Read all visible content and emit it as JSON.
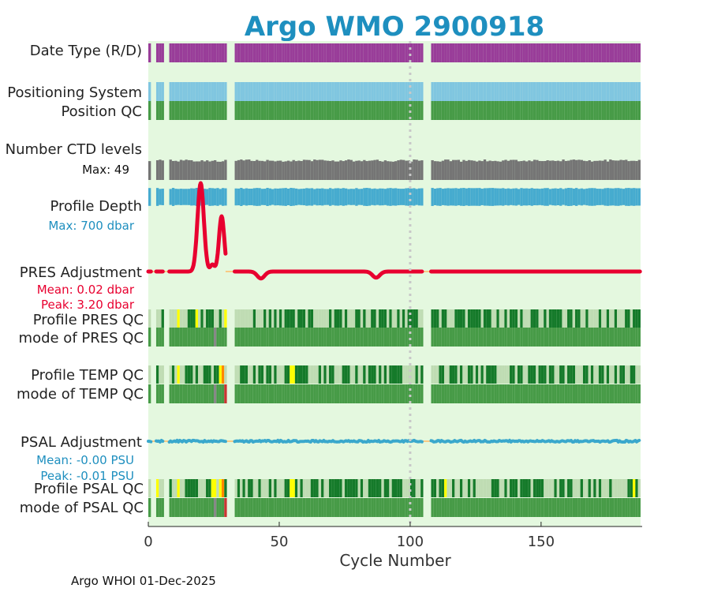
{
  "colors": {
    "background": "#e4f8df",
    "title": "#1e8fbf",
    "delayed_mode": "#993d99",
    "positioning": "#80c6e0",
    "position_qc_good": "#479b47",
    "ctd_levels": "#757575",
    "profile_depth": "#46abcf",
    "pres_adjust": "#e8002f",
    "pres_adjust_label": "#e8002f",
    "psal_adjust": "#3aa8cc",
    "psal_adjust_label": "#1e8fbf",
    "depth_max_label": "#1e8fbf",
    "qc_A": "#157a2a",
    "qc_light": "#bfdcb3",
    "qc_mid": "#479b47",
    "qc_yellow": "#ffff00",
    "qc_orange": "#ff8800",
    "qc_red": "#cc3333",
    "qc_grey": "#888888",
    "missing_line": "#ffbb66",
    "reference_line": "#c8c8c8"
  },
  "chart_data": {
    "type": "float-diagnostics",
    "title": "Argo WMO 2900918",
    "xlabel": "Cycle Number",
    "xlim": [
      0,
      188
    ],
    "xticks": [
      0,
      50,
      100,
      150
    ],
    "x_ticklabels": [
      "0",
      "50",
      "100",
      "150"
    ],
    "reference_cycle": 100,
    "missing_cycles": [
      1,
      2,
      6,
      7,
      30,
      31,
      32,
      105,
      106,
      107
    ],
    "rows": {
      "data_type": {
        "label": "Date Type (R/D)",
        "value": "D"
      },
      "positioning_system": {
        "label": "Positioning System"
      },
      "position_qc": {
        "label": "Position QC",
        "value": "1"
      },
      "ctd_levels": {
        "label": "Number CTD levels",
        "max_label": "Max: 49",
        "max": 49
      },
      "profile_depth": {
        "label": "Profile Depth",
        "max_label": "Max:  700 dbar",
        "max": 700
      },
      "pres_adjustment": {
        "label": "PRES Adjustment",
        "mean_label": "Mean: 0.02 dbar",
        "peak_label": "Peak: 3.20 dbar",
        "spikes": [
          {
            "cycle": 20,
            "value": 3.2,
            "width": 1.2
          },
          {
            "cycle": 24.5,
            "value": 0.25,
            "width": 0.8
          },
          {
            "cycle": 28,
            "value": 2.0,
            "width": 1.0
          },
          {
            "cycle": 43,
            "value": -0.25,
            "width": 1.4
          },
          {
            "cycle": 87,
            "value": -0.22,
            "width": 1.4
          }
        ]
      },
      "profile_pres_qc": {
        "label": "Profile PRES QC"
      },
      "mode_pres_qc": {
        "label": "mode of PRES QC"
      },
      "profile_temp_qc": {
        "label": "Profile TEMP QC"
      },
      "mode_temp_qc": {
        "label": "mode of TEMP QC"
      },
      "psal_adjustment": {
        "label": "PSAL Adjustment",
        "mean_label": "Mean: -0.00 PSU",
        "peak_label": "Peak: -0.01 PSU"
      },
      "profile_psal_qc": {
        "label": "Profile PSAL QC"
      },
      "mode_psal_qc": {
        "label": "mode of PSAL QC"
      }
    },
    "profile_qc_special": {
      "pres": {
        "yellow": [
          11,
          18,
          29
        ],
        "orange": [],
        "light_extra": []
      },
      "temp": {
        "yellow": [
          11,
          27,
          54,
          55
        ],
        "orange": [
          28
        ],
        "light_extra": []
      },
      "psal": {
        "yellow": [
          3,
          11,
          24,
          25,
          27,
          54,
          55,
          113,
          185
        ],
        "orange": [
          28
        ],
        "light_extra": []
      }
    },
    "mode_qc_special": {
      "pres": {
        "grey": [
          25
        ],
        "red": []
      },
      "temp": {
        "grey": [
          25
        ],
        "red": [
          29
        ]
      },
      "psal": {
        "grey": [
          25
        ],
        "red": [
          29
        ]
      }
    },
    "seed": 2900918
  },
  "footer": {
    "text": "Argo WHOI 01-Dec-2025"
  }
}
